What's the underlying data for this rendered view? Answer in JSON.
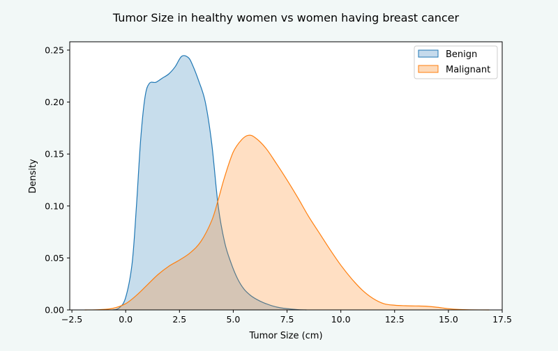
{
  "chart_data": {
    "type": "area",
    "title": "Tumor Size in healthy women vs women having breast cancer",
    "xlabel": "Tumor Size (cm)",
    "ylabel": "Density",
    "xlim": [
      -2.6,
      17.5
    ],
    "ylim": [
      0,
      0.258
    ],
    "xticks": [
      -2.5,
      0.0,
      2.5,
      5.0,
      7.5,
      10.0,
      12.5,
      15.0,
      17.5
    ],
    "xtick_labels": [
      "−2.5",
      "0.0",
      "2.5",
      "5.0",
      "7.5",
      "10.0",
      "12.5",
      "15.0",
      "17.5"
    ],
    "yticks": [
      0.0,
      0.05,
      0.1,
      0.15,
      0.2,
      0.25
    ],
    "ytick_labels": [
      "0.00",
      "0.05",
      "0.10",
      "0.15",
      "0.20",
      "0.25"
    ],
    "grid": false,
    "legend_position": "top-right",
    "series": [
      {
        "name": "Benign",
        "color": "#1f77b4",
        "fill": "#c5daec",
        "x": [
          -0.6,
          -0.3,
          0.0,
          0.3,
          0.5,
          0.7,
          0.9,
          1.1,
          1.4,
          1.7,
          2.0,
          2.3,
          2.6,
          2.9,
          3.1,
          3.4,
          3.7,
          4.0,
          4.3,
          4.6,
          4.9,
          5.2,
          5.5,
          5.8,
          6.1,
          6.4,
          6.8,
          7.2,
          7.6,
          8.0,
          8.4
        ],
        "y": [
          0.0,
          0.002,
          0.012,
          0.045,
          0.1,
          0.165,
          0.205,
          0.218,
          0.219,
          0.223,
          0.227,
          0.234,
          0.244,
          0.243,
          0.236,
          0.22,
          0.2,
          0.16,
          0.1,
          0.065,
          0.045,
          0.03,
          0.02,
          0.014,
          0.01,
          0.007,
          0.004,
          0.002,
          0.001,
          0.0003,
          0.0
        ]
      },
      {
        "name": "Malignant",
        "color": "#ff7f0e",
        "fill": "#fdd9b8",
        "x": [
          -1.9,
          -1.2,
          -0.6,
          0.0,
          0.5,
          1.0,
          1.5,
          2.0,
          2.5,
          3.0,
          3.5,
          4.0,
          4.3,
          4.6,
          5.0,
          5.4,
          5.7,
          6.0,
          6.5,
          7.0,
          7.5,
          8.0,
          8.5,
          9.0,
          9.5,
          10.0,
          10.5,
          11.0,
          11.5,
          12.0,
          12.5,
          13.0,
          13.5,
          14.0,
          14.5,
          15.0,
          15.5,
          16.0,
          16.9
        ],
        "y": [
          0.0,
          0.0003,
          0.0015,
          0.006,
          0.014,
          0.024,
          0.034,
          0.042,
          0.048,
          0.055,
          0.066,
          0.086,
          0.106,
          0.128,
          0.152,
          0.164,
          0.168,
          0.166,
          0.156,
          0.141,
          0.125,
          0.108,
          0.09,
          0.074,
          0.058,
          0.043,
          0.03,
          0.019,
          0.011,
          0.006,
          0.0045,
          0.004,
          0.0038,
          0.0035,
          0.0025,
          0.0012,
          0.0004,
          0.0001,
          0.0
        ]
      }
    ]
  }
}
